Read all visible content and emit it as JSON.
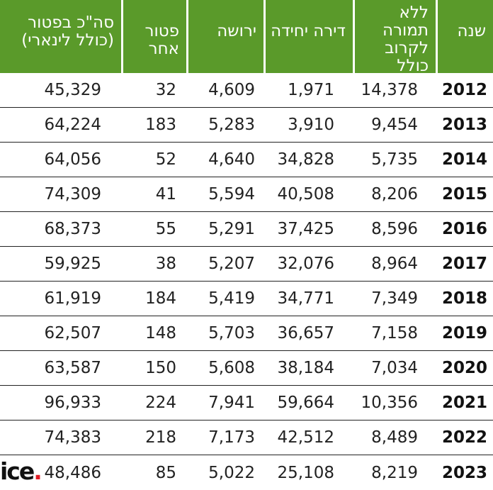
{
  "table": {
    "headers": [
      "סה\"כ בפטור\n(כולל לינארי)",
      "פטור אחר",
      "ירושה",
      "דירה יחידה",
      "ללא\nתמורה\nלקרוב כולל",
      "שנה"
    ],
    "rows": [
      {
        "total": "45,329",
        "other": "32",
        "inheritance": "4,609",
        "single_apt": "1,971",
        "no_consideration": "14,378",
        "year": "2012"
      },
      {
        "total": "64,224",
        "other": "183",
        "inheritance": "5,283",
        "single_apt": "3,910",
        "no_consideration": "9,454",
        "year": "2013"
      },
      {
        "total": "64,056",
        "other": "52",
        "inheritance": "4,640",
        "single_apt": "34,828",
        "no_consideration": "5,735",
        "year": "2014"
      },
      {
        "total": "74,309",
        "other": "41",
        "inheritance": "5,594",
        "single_apt": "40,508",
        "no_consideration": "8,206",
        "year": "2015"
      },
      {
        "total": "68,373",
        "other": "55",
        "inheritance": "5,291",
        "single_apt": "37,425",
        "no_consideration": "8,596",
        "year": "2016"
      },
      {
        "total": "59,925",
        "other": "38",
        "inheritance": "5,207",
        "single_apt": "32,076",
        "no_consideration": "8,964",
        "year": "2017"
      },
      {
        "total": "61,919",
        "other": "184",
        "inheritance": "5,419",
        "single_apt": "34,771",
        "no_consideration": "7,349",
        "year": "2018"
      },
      {
        "total": "62,507",
        "other": "148",
        "inheritance": "5,703",
        "single_apt": "36,657",
        "no_consideration": "7,158",
        "year": "2019"
      },
      {
        "total": "63,587",
        "other": "150",
        "inheritance": "5,608",
        "single_apt": "38,184",
        "no_consideration": "7,034",
        "year": "2020"
      },
      {
        "total": "96,933",
        "other": "224",
        "inheritance": "7,941",
        "single_apt": "59,664",
        "no_consideration": "10,356",
        "year": "2021"
      },
      {
        "total": "74,383",
        "other": "218",
        "inheritance": "7,173",
        "single_apt": "42,512",
        "no_consideration": "8,489",
        "year": "2022"
      },
      {
        "total": "48,486",
        "other": "85",
        "inheritance": "5,022",
        "single_apt": "25,108",
        "no_consideration": "8,219",
        "year": "2023"
      }
    ]
  },
  "logo": {
    "text": "ice",
    "dot": "."
  },
  "colors": {
    "header_bg": "#5a9a2a",
    "header_text": "#ffffff",
    "logo_dot": "#e01b24"
  }
}
